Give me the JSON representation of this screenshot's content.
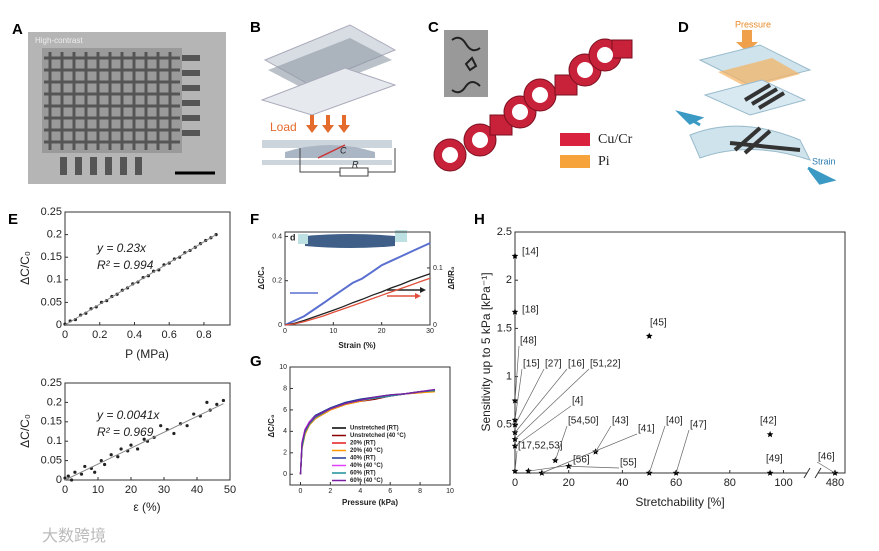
{
  "panels": {
    "labels": [
      "A",
      "B",
      "C",
      "D",
      "E",
      "F",
      "G",
      "H"
    ],
    "a_caption": "High-contrast",
    "b_load": "Load",
    "b_c": "C",
    "b_r": "R",
    "c_legend": [
      "Cu/Cr",
      "Pi"
    ],
    "d_pressure": "Pressure",
    "d_strain": "Strain"
  },
  "watermark": "大数跨境",
  "chart_data": [
    {
      "type": "scatter",
      "xlabel": "P (MPa)",
      "ylabel": "ΔC/C₀",
      "annotations": [
        "y = 0.23x",
        "R² = 0.994"
      ],
      "fit_slope": 0.23,
      "color": "#222222",
      "x": [
        0,
        0.03,
        0.06,
        0.09,
        0.12,
        0.15,
        0.18,
        0.21,
        0.24,
        0.27,
        0.3,
        0.33,
        0.36,
        0.39,
        0.42,
        0.45,
        0.48,
        0.51,
        0.54,
        0.57,
        0.6,
        0.63,
        0.66,
        0.69,
        0.72,
        0.75,
        0.78,
        0.81,
        0.84,
        0.87
      ],
      "values": [
        0.002,
        0.009,
        0.012,
        0.022,
        0.026,
        0.036,
        0.04,
        0.05,
        0.054,
        0.063,
        0.068,
        0.077,
        0.082,
        0.091,
        0.095,
        0.105,
        0.109,
        0.119,
        0.122,
        0.133,
        0.137,
        0.146,
        0.15,
        0.16,
        0.165,
        0.172,
        0.18,
        0.187,
        0.193,
        0.2
      ],
      "xlim": [
        0,
        0.95
      ],
      "ylim": [
        0,
        0.25
      ],
      "xticks": [
        0,
        0.2,
        0.4,
        0.6,
        0.8
      ],
      "yticks": [
        0,
        0.05,
        0.1,
        0.15,
        0.2,
        0.25
      ]
    },
    {
      "type": "scatter",
      "xlabel": "ε (%)",
      "ylabel": "ΔC/C₀",
      "annotations": [
        "y = 0.0041x",
        "R² = 0.969"
      ],
      "fit_slope": 0.0041,
      "color": "#222222",
      "x": [
        0,
        1,
        2,
        3,
        5,
        6,
        8,
        9,
        11,
        12,
        14,
        16,
        17,
        19,
        20,
        22,
        24,
        25,
        27,
        29,
        31,
        33,
        35,
        37,
        39,
        41,
        43,
        44,
        46,
        48
      ],
      "values": [
        0.005,
        0.01,
        0,
        0.02,
        0.015,
        0.035,
        0.03,
        0.02,
        0.05,
        0.04,
        0.065,
        0.06,
        0.08,
        0.075,
        0.09,
        0.08,
        0.105,
        0.1,
        0.11,
        0.14,
        0.13,
        0.12,
        0.145,
        0.14,
        0.17,
        0.165,
        0.2,
        0.18,
        0.195,
        0.205
      ],
      "xlim": [
        0,
        50
      ],
      "ylim": [
        0,
        0.25
      ],
      "xticks": [
        0,
        10,
        20,
        30,
        40,
        50
      ],
      "yticks": [
        0,
        0.05,
        0.1,
        0.15,
        0.2,
        0.25
      ]
    },
    {
      "type": "line",
      "xlabel": "Strain (%)",
      "ylabel": "ΔC/C₀",
      "y2label": "ΔR/R₀",
      "inset_label": "d",
      "x": [
        0,
        2,
        4,
        6,
        8,
        10,
        12,
        14,
        16,
        18,
        20,
        22,
        24,
        26,
        28,
        30
      ],
      "series": [
        {
          "color": "#5a6fd0",
          "values": [
            0,
            0.02,
            0.04,
            0.07,
            0.1,
            0.13,
            0.16,
            0.19,
            0.21,
            0.24,
            0.27,
            0.29,
            0.31,
            0.33,
            0.35,
            0.37
          ]
        },
        {
          "color": "#222222",
          "axis": "y2",
          "values": [
            0,
            0.003,
            0.008,
            0.014,
            0.02,
            0.026,
            0.032,
            0.039,
            0.045,
            0.052,
            0.058,
            0.065,
            0.071,
            0.078,
            0.084,
            0.09
          ]
        },
        {
          "color": "#e0503c",
          "axis": "y2",
          "values": [
            0,
            0.002,
            0.006,
            0.011,
            0.016,
            0.022,
            0.028,
            0.034,
            0.04,
            0.046,
            0.052,
            0.058,
            0.064,
            0.07,
            0.076,
            0.082
          ]
        }
      ],
      "xlim": [
        0,
        30
      ],
      "ylim": [
        0,
        0.42
      ],
      "y2lim": [
        0,
        0.163
      ],
      "xticks": [
        0,
        10,
        20,
        30
      ],
      "yticks": [
        0,
        0.2,
        0.4
      ],
      "y2ticks": [
        0,
        0.1
      ]
    },
    {
      "type": "line",
      "xlabel": "Pressure (kPa)",
      "ylabel": "ΔC/C₀",
      "x": [
        0,
        0.1,
        0.3,
        0.6,
        1,
        2,
        3,
        4,
        5,
        6,
        7,
        8,
        9
      ],
      "series": [
        {
          "name": "Unstretched (RT)",
          "color": "#000000",
          "values": [
            0,
            2.6,
            3.9,
            4.7,
            5.3,
            6.1,
            6.6,
            6.9,
            7.1,
            7.3,
            7.5,
            7.7,
            7.8
          ]
        },
        {
          "name": "Unstretched (40 °C)",
          "color": "#8b0000",
          "values": [
            0,
            2.5,
            3.8,
            4.6,
            5.2,
            6.0,
            6.5,
            6.8,
            7.0,
            7.3,
            7.5,
            7.6,
            7.8
          ]
        },
        {
          "name": "20% (RT)",
          "color": "#e41a1c",
          "values": [
            0,
            2.7,
            4.0,
            4.8,
            5.4,
            6.1,
            6.6,
            6.9,
            7.1,
            7.3,
            7.5,
            7.7,
            7.8
          ]
        },
        {
          "name": "20% (40 °C)",
          "color": "#ff9900",
          "values": [
            0,
            2.4,
            3.7,
            4.6,
            5.2,
            6.0,
            6.5,
            6.8,
            7.1,
            7.3,
            7.5,
            7.6,
            7.7
          ]
        },
        {
          "name": "40% (RT)",
          "color": "#1f3a93",
          "values": [
            0,
            2.8,
            4.1,
            4.9,
            5.5,
            6.2,
            6.7,
            7.0,
            7.2,
            7.4,
            7.5,
            7.7,
            7.8
          ]
        },
        {
          "name": "40% (40 °C)",
          "color": "#e040fb",
          "values": [
            0,
            3.0,
            4.2,
            4.9,
            5.4,
            6.1,
            6.6,
            6.9,
            7.1,
            7.3,
            7.5,
            7.7,
            7.9
          ]
        },
        {
          "name": "60% (RT)",
          "color": "#1a8f9a",
          "values": [
            0,
            2.5,
            3.9,
            4.7,
            5.3,
            6.1,
            6.6,
            6.9,
            7.1,
            7.3,
            7.5,
            7.7,
            7.8
          ]
        },
        {
          "name": "60% (40 °C)",
          "color": "#7b1fa2",
          "values": [
            0,
            2.9,
            4.1,
            4.8,
            5.4,
            6.1,
            6.6,
            6.9,
            7.2,
            7.4,
            7.5,
            7.7,
            7.9
          ]
        }
      ],
      "xlim": [
        -0.7,
        10
      ],
      "ylim": [
        -1,
        10
      ],
      "xticks": [
        0,
        2,
        4,
        6,
        8,
        10
      ],
      "yticks": [
        0,
        2,
        4,
        6,
        8,
        10
      ]
    },
    {
      "type": "scatter",
      "xlabel": "Stretchability [%]",
      "ylabel": "Sensitivity up to 5 kPa [kPa⁻¹]",
      "color": "#000000",
      "x": [
        0,
        0,
        0,
        0,
        0,
        0,
        0,
        0,
        0,
        15,
        30,
        10,
        50,
        60,
        5,
        20,
        50,
        95,
        95,
        480
      ],
      "values": [
        2.25,
        1.67,
        0.75,
        0.55,
        0.5,
        0.42,
        0.35,
        0.28,
        0.02,
        0.13,
        0.22,
        0,
        0,
        0,
        0.02,
        0.07,
        1.42,
        0.4,
        0,
        0
      ],
      "point_labels": [
        "[14]",
        "[18]",
        "[48]",
        "[15]",
        "[27]",
        "[16]",
        "[51,22]",
        "[4]",
        "[17,52,53]",
        "[54,50]",
        "[43]",
        "[41]",
        "[40]",
        "[47]",
        "[56]",
        "[55]",
        "[45]",
        "[42]",
        "[49]",
        "[46]"
      ],
      "xlim": [
        0,
        482
      ],
      "x_break": [
        108,
        477
      ],
      "ylim": [
        0,
        2.5
      ],
      "xticks": [
        0,
        20,
        40,
        60,
        80,
        100,
        480
      ],
      "yticks": [
        0.5,
        1,
        1.5,
        2,
        2.5
      ]
    }
  ]
}
